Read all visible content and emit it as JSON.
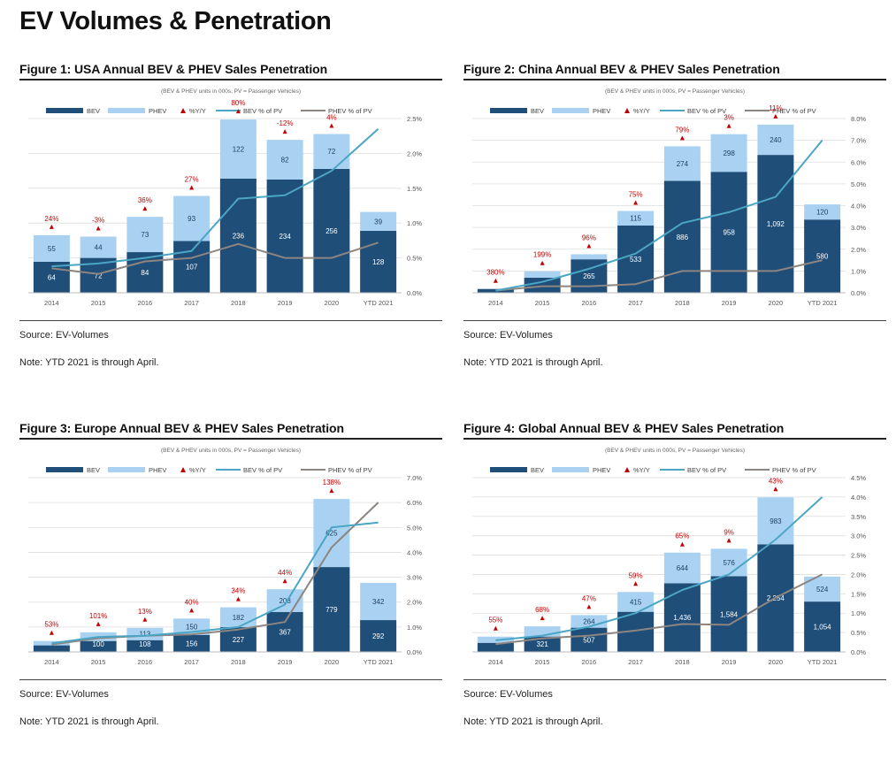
{
  "page_title": "EV Volumes & Penetration",
  "legend_labels": {
    "bev": "BEV",
    "phev": "PHEV",
    "yoy": "%Y/Y",
    "bev_pct": "BEV % of PV",
    "phev_pct": "PHEV % of PV"
  },
  "colors": {
    "bev": "#1f4e79",
    "phev": "#a9d2f2",
    "yoy": "#c00000",
    "bev_line": "#4aa6c4",
    "phev_line": "#8c8580",
    "grid": "#dddddd"
  },
  "chart_data": [
    {
      "type": "bar",
      "title": "Figure 1: USA Annual BEV & PHEV Sales Penetration",
      "subtitle": "(BEV & PHEV units in 000s, PV = Passenger Vehicles)",
      "categories": [
        "2014",
        "2015",
        "2016",
        "2017",
        "2018",
        "2019",
        "2020",
        "YTD 2021"
      ],
      "series": [
        {
          "name": "BEV",
          "values": [
            64,
            72,
            84,
            107,
            236,
            234,
            256,
            128
          ],
          "labels": [
            "64",
            "72",
            "84",
            "107",
            "236",
            "234",
            "256",
            "128"
          ]
        },
        {
          "name": "PHEV",
          "values": [
            55,
            44,
            73,
            93,
            122,
            82,
            72,
            39
          ],
          "labels": [
            "55",
            "44",
            "73",
            "93",
            "122",
            "82",
            "72",
            "39"
          ]
        },
        {
          "name": "%Y/Y",
          "labels": [
            "24%",
            "-3%",
            "36%",
            "27%",
            "80%",
            "-12%",
            "4%",
            ""
          ]
        },
        {
          "name": "BEV % of PV",
          "values": [
            0.38,
            0.42,
            0.5,
            0.6,
            1.35,
            1.4,
            1.75,
            2.35
          ]
        },
        {
          "name": "PHEV % of PV",
          "values": [
            0.35,
            0.27,
            0.45,
            0.5,
            0.7,
            0.5,
            0.5,
            0.72
          ]
        }
      ],
      "primary_max": 360,
      "ylim_right": [
        0,
        2.5
      ],
      "right_ticks": [
        "0.0%",
        "0.5%",
        "1.0%",
        "1.5%",
        "2.0%",
        "2.5%"
      ],
      "source": "Source: EV-Volumes",
      "note": "Note: YTD 2021 is through April."
    },
    {
      "type": "bar",
      "title": "Figure 2: China Annual BEV & PHEV Sales Penetration",
      "subtitle": "(BEV & PHEV units in 000s, PV = Passenger Vehicles)",
      "categories": [
        "2014",
        "2015",
        "2016",
        "2017",
        "2018",
        "2019",
        "2020",
        "YTD 2021"
      ],
      "series": [
        {
          "name": "BEV",
          "values": [
            30,
            120,
            265,
            533,
            886,
            958,
            1092,
            580
          ],
          "labels": [
            "",
            "",
            "265",
            "533",
            "886",
            "958",
            "1,092",
            "580"
          ]
        },
        {
          "name": "PHEV",
          "values": [
            0,
            50,
            40,
            115,
            274,
            298,
            240,
            120
          ],
          "labels": [
            "",
            "",
            "",
            "115",
            "274",
            "298",
            "240",
            "120"
          ]
        },
        {
          "name": "%Y/Y",
          "labels": [
            "380%",
            "199%",
            "96%",
            "75%",
            "79%",
            "3%",
            "11%",
            ""
          ]
        },
        {
          "name": "BEV % of PV",
          "values": [
            0.1,
            0.5,
            1.1,
            1.8,
            3.2,
            3.7,
            4.4,
            7.0
          ]
        },
        {
          "name": "PHEV % of PV",
          "values": [
            0.1,
            0.3,
            0.3,
            0.4,
            1.0,
            1.0,
            1.0,
            1.5
          ]
        }
      ],
      "primary_max": 1380,
      "ylim_right": [
        0,
        8
      ],
      "right_ticks": [
        "0.0%",
        "1.0%",
        "2.0%",
        "3.0%",
        "4.0%",
        "5.0%",
        "6.0%",
        "7.0%",
        "8.0%"
      ],
      "source": "Source: EV-Volumes",
      "note": "Note: YTD 2021 is through April."
    },
    {
      "type": "bar",
      "title": "Figure 3: Europe Annual BEV & PHEV Sales Penetration",
      "subtitle": "(BEV & PHEV units in 000s, PV = Passenger Vehicles)",
      "categories": [
        "2014",
        "2015",
        "2016",
        "2017",
        "2018",
        "2019",
        "2020",
        "YTD 2021"
      ],
      "series": [
        {
          "name": "BEV",
          "values": [
            60,
            100,
            108,
            156,
            227,
            367,
            779,
            292
          ],
          "labels": [
            "",
            "100",
            "108",
            "156",
            "227",
            "367",
            "779",
            "292"
          ]
        },
        {
          "name": "PHEV",
          "values": [
            40,
            80,
            113,
            150,
            182,
            208,
            625,
            342
          ],
          "labels": [
            "",
            "",
            "113",
            "150",
            "182",
            "208",
            "625",
            "342"
          ]
        },
        {
          "name": "%Y/Y",
          "labels": [
            "53%",
            "101%",
            "13%",
            "40%",
            "34%",
            "44%",
            "138%",
            ""
          ]
        },
        {
          "name": "BEV % of PV",
          "values": [
            0.35,
            0.6,
            0.65,
            0.8,
            1.0,
            1.9,
            5.0,
            5.2
          ]
        },
        {
          "name": "PHEV % of PV",
          "values": [
            0.3,
            0.55,
            0.65,
            0.7,
            0.9,
            1.2,
            4.2,
            6.0
          ]
        }
      ],
      "primary_max": 1600,
      "ylim_right": [
        0,
        7
      ],
      "right_ticks": [
        "0.0%",
        "1.0%",
        "2.0%",
        "3.0%",
        "4.0%",
        "5.0%",
        "6.0%",
        "7.0%"
      ],
      "source": "Source: EV-Volumes",
      "note": "Note: YTD 2021 is through April."
    },
    {
      "type": "bar",
      "title": "Figure 4: Global Annual BEV & PHEV Sales Penetration",
      "subtitle": "(BEV & PHEV units in 000s, PV = Passenger Vehicles)",
      "categories": [
        "2014",
        "2015",
        "2016",
        "2017",
        "2018",
        "2019",
        "2020",
        "YTD 2021"
      ],
      "series": [
        {
          "name": "BEV",
          "values": [
            190,
            321,
            507,
            840,
            1436,
            1584,
            2254,
            1054
          ],
          "labels": [
            "",
            "321",
            "507",
            "",
            "1,436",
            "1,584",
            "2,254",
            "1,054"
          ]
        },
        {
          "name": "PHEV",
          "values": [
            130,
            215,
            264,
            415,
            644,
            576,
            983,
            524
          ],
          "labels": [
            "",
            "",
            "264",
            "415",
            "644",
            "576",
            "983",
            "524"
          ]
        },
        {
          "name": "%Y/Y",
          "labels": [
            "55%",
            "68%",
            "47%",
            "59%",
            "65%",
            "9%",
            "43%",
            ""
          ]
        },
        {
          "name": "BEV % of PV",
          "values": [
            0.3,
            0.42,
            0.65,
            1.0,
            1.6,
            2.0,
            2.9,
            4.0
          ]
        },
        {
          "name": "PHEV % of PV",
          "values": [
            0.2,
            0.35,
            0.42,
            0.55,
            0.72,
            0.7,
            1.4,
            2.0
          ]
        }
      ],
      "primary_max": 3650,
      "ylim_right": [
        0,
        4.5
      ],
      "right_ticks": [
        "0.0%",
        "0.5%",
        "1.0%",
        "1.5%",
        "2.0%",
        "2.5%",
        "3.0%",
        "3.5%",
        "4.0%",
        "4.5%"
      ],
      "source": "Source: EV-Volumes",
      "note": "Note: YTD 2021 is through April."
    }
  ]
}
